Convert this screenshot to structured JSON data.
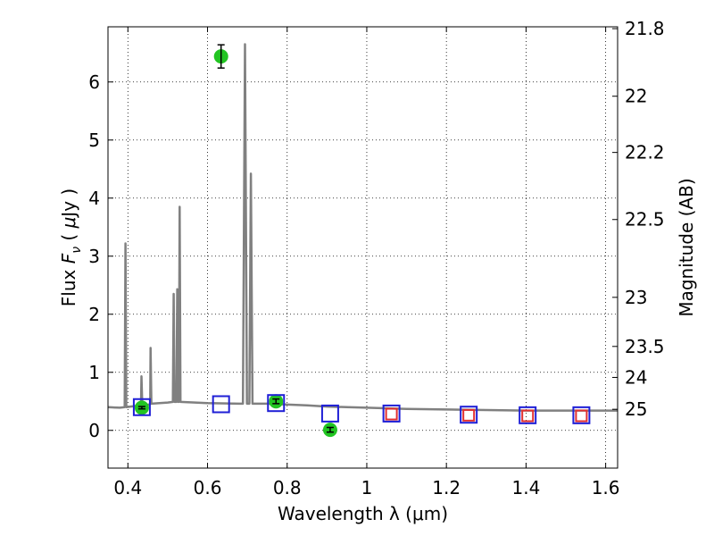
{
  "chart_data": {
    "type": "line",
    "title": "",
    "xlabel": "Wavelength  λ (μm)",
    "ylabel": "Flux  F_ν  ( μJy )",
    "ylabel_parts": [
      "Flux ",
      "F",
      "ν",
      "  ( ",
      "μ",
      "Jy )"
    ],
    "ylabel_right": "Magnitude (AB)",
    "xlim": [
      0.35,
      1.63
    ],
    "ylim": [
      -0.65,
      6.95
    ],
    "grid": true,
    "x_ticks": [
      0.4,
      0.6,
      0.8,
      1.0,
      1.2,
      1.4,
      1.6
    ],
    "x_tick_labels": [
      "0.4",
      "0.6",
      "0.8",
      "1",
      "1.2",
      "1.4",
      "1.6"
    ],
    "y_ticks": [
      0,
      1,
      2,
      3,
      4,
      5,
      6
    ],
    "y_tick_labels": [
      "0",
      "1",
      "2",
      "3",
      "4",
      "5",
      "6"
    ],
    "right_ticks": [
      {
        "mag": 21.8,
        "label": "21.8"
      },
      {
        "mag": 22.0,
        "label": "22"
      },
      {
        "mag": 22.2,
        "label": "22.2"
      },
      {
        "mag": 22.5,
        "label": "22.5"
      },
      {
        "mag": 23.0,
        "label": "23"
      },
      {
        "mag": 23.5,
        "label": "23.5"
      },
      {
        "mag": 24.0,
        "label": "24"
      },
      {
        "mag": 25.0,
        "label": "25"
      }
    ],
    "series": [
      {
        "type": "line",
        "color": "#808080",
        "points": [
          [
            0.35,
            0.4
          ],
          [
            0.38,
            0.39
          ],
          [
            0.392,
            0.4
          ],
          [
            0.394,
            3.22
          ],
          [
            0.396,
            0.4
          ],
          [
            0.42,
            0.42
          ],
          [
            0.433,
            0.43
          ],
          [
            0.434,
            0.93
          ],
          [
            0.436,
            0.43
          ],
          [
            0.45,
            0.44
          ],
          [
            0.456,
            0.45
          ],
          [
            0.457,
            1.42
          ],
          [
            0.459,
            0.46
          ],
          [
            0.5,
            0.48
          ],
          [
            0.513,
            0.49
          ],
          [
            0.515,
            2.35
          ],
          [
            0.517,
            0.49
          ],
          [
            0.522,
            0.49
          ],
          [
            0.524,
            2.43
          ],
          [
            0.526,
            0.49
          ],
          [
            0.528,
            0.49
          ],
          [
            0.53,
            3.85
          ],
          [
            0.532,
            0.49
          ],
          [
            0.6,
            0.47
          ],
          [
            0.68,
            0.46
          ],
          [
            0.689,
            0.46
          ],
          [
            0.694,
            6.65
          ],
          [
            0.699,
            0.46
          ],
          [
            0.705,
            0.46
          ],
          [
            0.709,
            4.42
          ],
          [
            0.713,
            0.46
          ],
          [
            0.75,
            0.46
          ],
          [
            0.78,
            0.45
          ],
          [
            0.85,
            0.43
          ],
          [
            0.9,
            0.41
          ],
          [
            0.95,
            0.4
          ],
          [
            1.0,
            0.39
          ],
          [
            1.1,
            0.37
          ],
          [
            1.2,
            0.36
          ],
          [
            1.3,
            0.35
          ],
          [
            1.4,
            0.34
          ],
          [
            1.5,
            0.34
          ],
          [
            1.63,
            0.34
          ]
        ]
      },
      {
        "type": "scatter",
        "marker": "circle",
        "color": "#22c422",
        "points": [
          {
            "x": 0.435,
            "y": 0.39,
            "err": 0.02
          },
          {
            "x": 0.634,
            "y": 6.44,
            "err": 0.2
          },
          {
            "x": 0.772,
            "y": 0.5,
            "err": 0.04
          },
          {
            "x": 0.908,
            "y": 0.01,
            "err": 0.04
          }
        ]
      },
      {
        "type": "scatter",
        "marker": "square",
        "color": "#e23030",
        "points": [
          {
            "x": 1.062,
            "y": 0.28
          },
          {
            "x": 1.256,
            "y": 0.26
          },
          {
            "x": 1.404,
            "y": 0.25
          },
          {
            "x": 1.539,
            "y": 0.25
          }
        ]
      },
      {
        "type": "scatter",
        "marker": "square",
        "color": "#1f1fd6",
        "points": [
          {
            "x": 0.435,
            "y": 0.4
          },
          {
            "x": 0.634,
            "y": 0.45
          },
          {
            "x": 0.772,
            "y": 0.47
          },
          {
            "x": 0.908,
            "y": 0.29
          },
          {
            "x": 1.062,
            "y": 0.29
          },
          {
            "x": 1.256,
            "y": 0.27
          },
          {
            "x": 1.404,
            "y": 0.26
          },
          {
            "x": 1.539,
            "y": 0.26
          }
        ]
      }
    ]
  }
}
